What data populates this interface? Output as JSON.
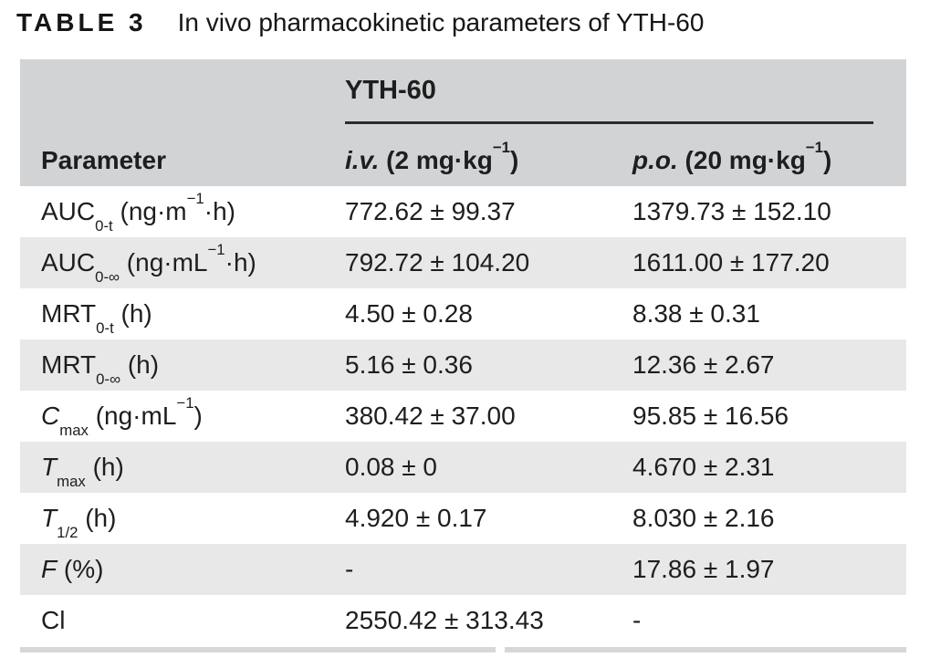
{
  "caption": {
    "label": "TABLE 3",
    "text": "In vivo pharmacokinetic parameters of YTH-60"
  },
  "table": {
    "group_header": "YTH-60",
    "columns": {
      "parameter": "Parameter",
      "iv": "*i.v.* (2 mg·kg^−1^)",
      "po": "*p.o.* (20 mg·kg^−1^)"
    },
    "rows": [
      {
        "parameter": "AUC~0-t~ (ng·m^−1^·h)",
        "iv": "772.62 ± 99.37",
        "po": "1379.73 ± 152.10"
      },
      {
        "parameter": "AUC~0-∞~ (ng·mL^−1^·h)",
        "iv": "792.72 ± 104.20",
        "po": "1611.00 ± 177.20"
      },
      {
        "parameter": "MRT~0-t~ (h)",
        "iv": "4.50 ± 0.28",
        "po": "8.38 ± 0.31"
      },
      {
        "parameter": "MRT~0-∞~ (h)",
        "iv": "5.16 ± 0.36",
        "po": "12.36 ± 2.67"
      },
      {
        "parameter": "*C*~max~ (ng·mL^−1^)",
        "iv": "380.42 ± 37.00",
        "po": "95.85 ± 16.56"
      },
      {
        "parameter": "*T*~max~ (h)",
        "iv": "0.08 ± 0",
        "po": "4.670 ± 2.31"
      },
      {
        "parameter": "*T*~1/2~ (h)",
        "iv": "4.920 ± 0.17",
        "po": "8.030 ± 2.16"
      },
      {
        "parameter": "*F* (%)",
        "iv": "-",
        "po": "17.86 ± 1.97"
      },
      {
        "parameter": "Cl",
        "iv": "2550.42 ± 313.43",
        "po": "-"
      }
    ],
    "colors": {
      "header_bg": "#d2d3d4",
      "row_alt_bg": "#e8e8e9",
      "rule_dark": "#2b2b2c",
      "bottom_bar": "#d6d7d8",
      "text": "#1e1e1f"
    }
  }
}
